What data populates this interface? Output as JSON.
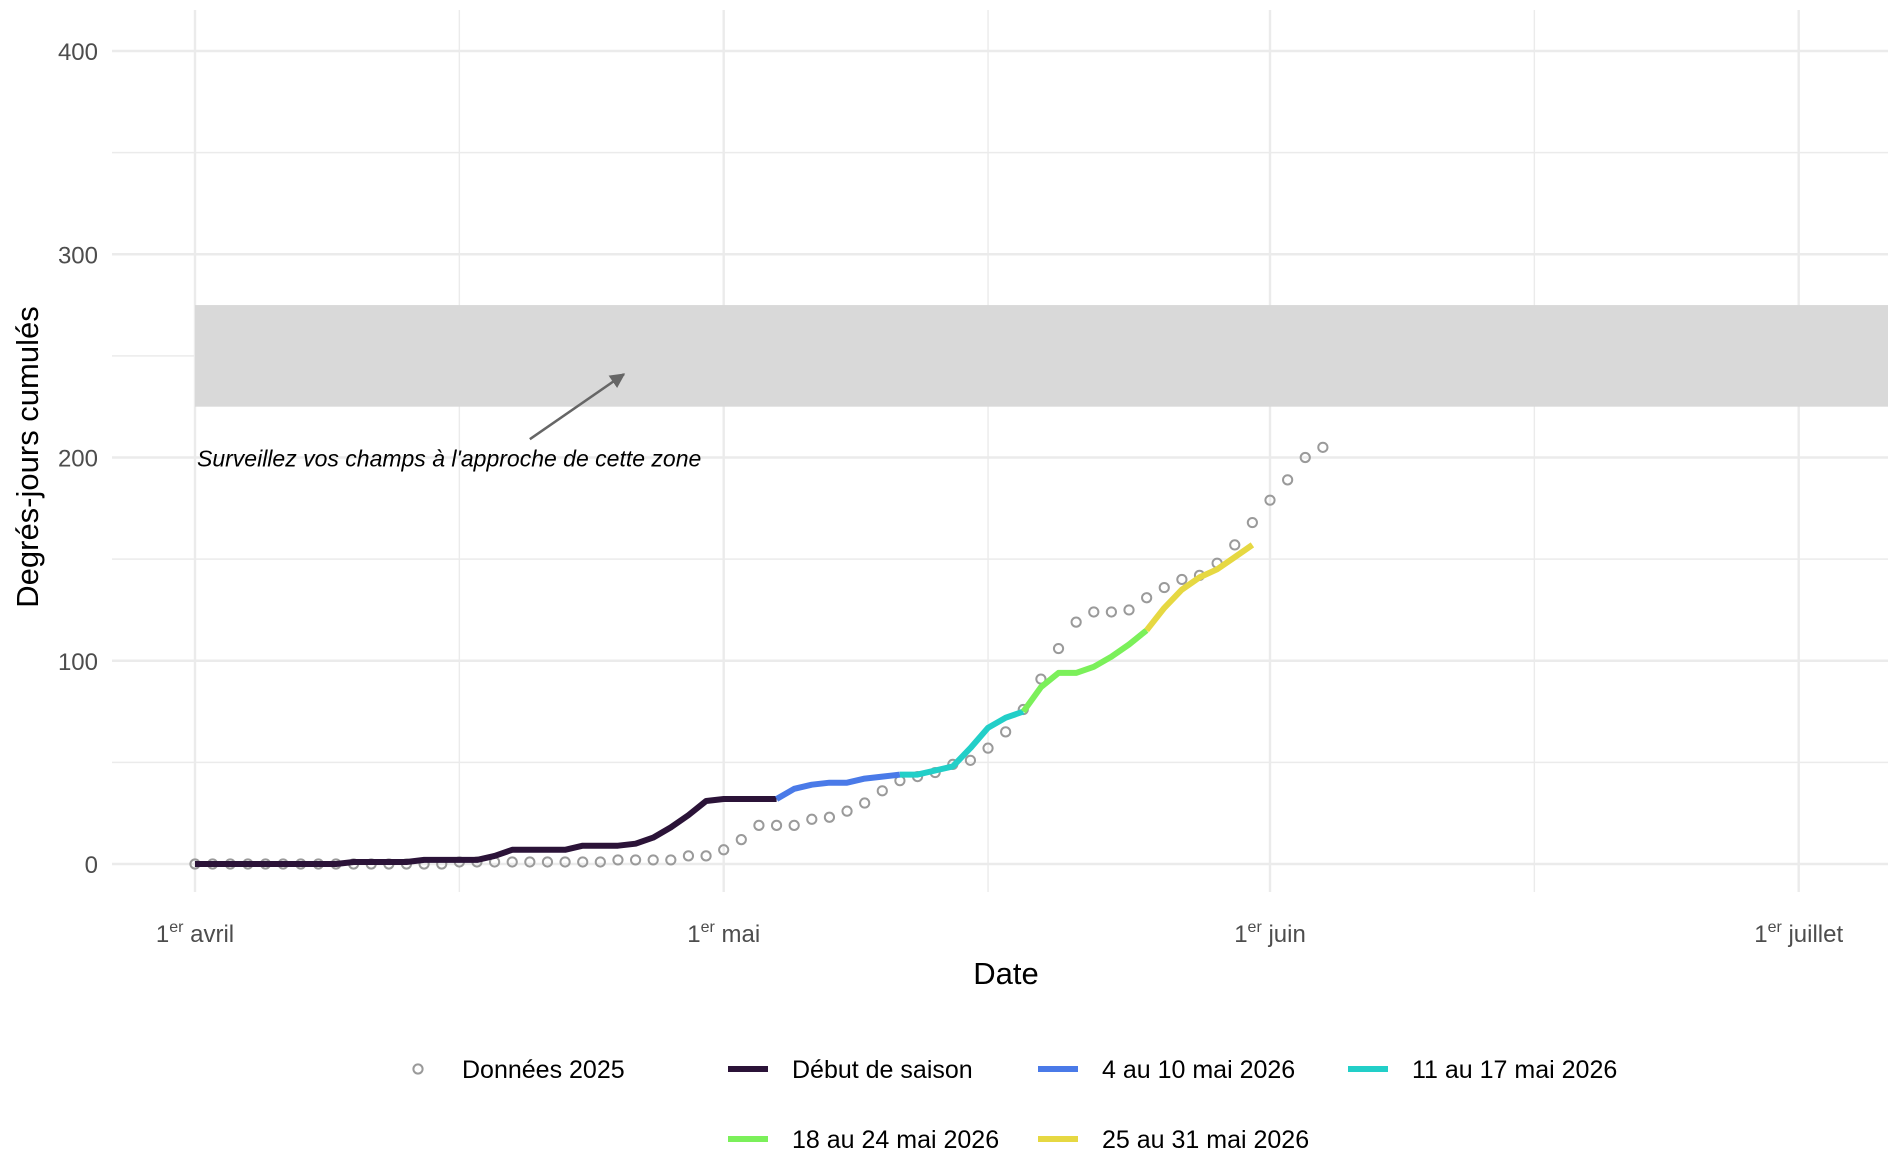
{
  "chart_data": {
    "type": "line",
    "title": "",
    "xlabel": "Date",
    "ylabel": "Degrés-jours cumulés",
    "x_range": [
      "2026-04-01",
      "2026-07-08"
    ],
    "ylim": [
      -20,
      420
    ],
    "y_ticks": [
      0,
      100,
      200,
      300,
      400
    ],
    "x_ticks": [
      {
        "date": "2026-04-01",
        "num": "1",
        "sup": "er",
        "month": "avril"
      },
      {
        "date": "2026-05-01",
        "num": "1",
        "sup": "er",
        "month": "mai"
      },
      {
        "date": "2026-06-01",
        "num": "1",
        "sup": "er",
        "month": "juin"
      },
      {
        "date": "2026-07-01",
        "num": "1",
        "sup": "er",
        "month": "juillet"
      }
    ],
    "x_minor_ticks": [
      "2026-04-16",
      "2026-05-16",
      "2026-06-16"
    ],
    "grid": true,
    "legend_position": "bottom",
    "band": {
      "y_min": 225,
      "y_max": 275,
      "x_start": "2026-04-01",
      "color": "#d9d9d9"
    },
    "annotation": {
      "text": "Surveillez vos champs à l'approche de cette zone",
      "anchor": {
        "date": "2026-04-01",
        "y": 200
      },
      "arrow_from": {
        "date": "2026-04-20",
        "y": 210
      },
      "arrow_to": {
        "date": "2026-04-25",
        "y": 241
      }
    },
    "points_2025": {
      "name": "Données 2025",
      "color": "#9a9a9a",
      "start_date": "2026-04-01",
      "values": [
        0,
        0,
        0,
        0,
        0,
        0,
        0,
        0,
        0,
        0,
        0,
        0,
        0,
        0,
        0,
        1,
        1,
        1,
        1,
        1,
        1,
        1,
        1,
        1,
        2,
        2,
        2,
        2,
        4,
        4,
        7,
        12,
        19,
        19,
        19,
        22,
        23,
        26,
        30,
        36,
        41,
        43,
        45,
        49,
        51,
        57,
        65,
        76,
        91,
        106,
        119,
        124,
        124,
        125,
        131,
        136,
        140,
        142,
        148,
        157,
        168,
        179,
        189,
        200,
        205
      ]
    },
    "series": [
      {
        "name": "Début de saison",
        "color": "#2b1338",
        "points": [
          [
            "2026-04-01",
            0
          ],
          [
            "2026-04-08",
            0
          ],
          [
            "2026-04-09",
            0
          ],
          [
            "2026-04-10",
            1
          ],
          [
            "2026-04-12",
            1
          ],
          [
            "2026-04-13",
            1
          ],
          [
            "2026-04-14",
            2
          ],
          [
            "2026-04-16",
            2
          ],
          [
            "2026-04-17",
            2
          ],
          [
            "2026-04-18",
            4
          ],
          [
            "2026-04-19",
            7
          ],
          [
            "2026-04-21",
            7
          ],
          [
            "2026-04-22",
            7
          ],
          [
            "2026-04-23",
            9
          ],
          [
            "2026-04-25",
            9
          ],
          [
            "2026-04-26",
            10
          ],
          [
            "2026-04-27",
            13
          ],
          [
            "2026-04-28",
            18
          ],
          [
            "2026-04-29",
            24
          ],
          [
            "2026-04-30",
            31
          ],
          [
            "2026-05-01",
            32
          ],
          [
            "2026-05-04",
            32
          ]
        ]
      },
      {
        "name": "4 au 10 mai 2026",
        "color": "#4a7ae8",
        "points": [
          [
            "2026-05-04",
            32
          ],
          [
            "2026-05-05",
            37
          ],
          [
            "2026-05-06",
            39
          ],
          [
            "2026-05-07",
            40
          ],
          [
            "2026-05-08",
            40
          ],
          [
            "2026-05-09",
            42
          ],
          [
            "2026-05-10",
            43
          ],
          [
            "2026-05-11",
            44
          ]
        ]
      },
      {
        "name": "11 au 17 mai 2026",
        "color": "#22cfc8",
        "points": [
          [
            "2026-05-11",
            44
          ],
          [
            "2026-05-12",
            44
          ],
          [
            "2026-05-13",
            46
          ],
          [
            "2026-05-14",
            48
          ],
          [
            "2026-05-15",
            57
          ],
          [
            "2026-05-16",
            67
          ],
          [
            "2026-05-17",
            72
          ],
          [
            "2026-05-18",
            75
          ]
        ]
      },
      {
        "name": "18 au 24 mai 2026",
        "color": "#7bf05a",
        "points": [
          [
            "2026-05-18",
            75
          ],
          [
            "2026-05-19",
            87
          ],
          [
            "2026-05-20",
            94
          ],
          [
            "2026-05-21",
            94
          ],
          [
            "2026-05-22",
            97
          ],
          [
            "2026-05-23",
            102
          ],
          [
            "2026-05-24",
            108
          ],
          [
            "2026-05-25",
            115
          ]
        ]
      },
      {
        "name": "25 au 31 mai 2026",
        "color": "#e6d842",
        "points": [
          [
            "2026-05-25",
            115
          ],
          [
            "2026-05-26",
            126
          ],
          [
            "2026-05-27",
            135
          ],
          [
            "2026-05-28",
            141
          ],
          [
            "2026-05-29",
            145
          ],
          [
            "2026-05-30",
            151
          ],
          [
            "2026-05-31",
            157
          ]
        ]
      }
    ]
  }
}
